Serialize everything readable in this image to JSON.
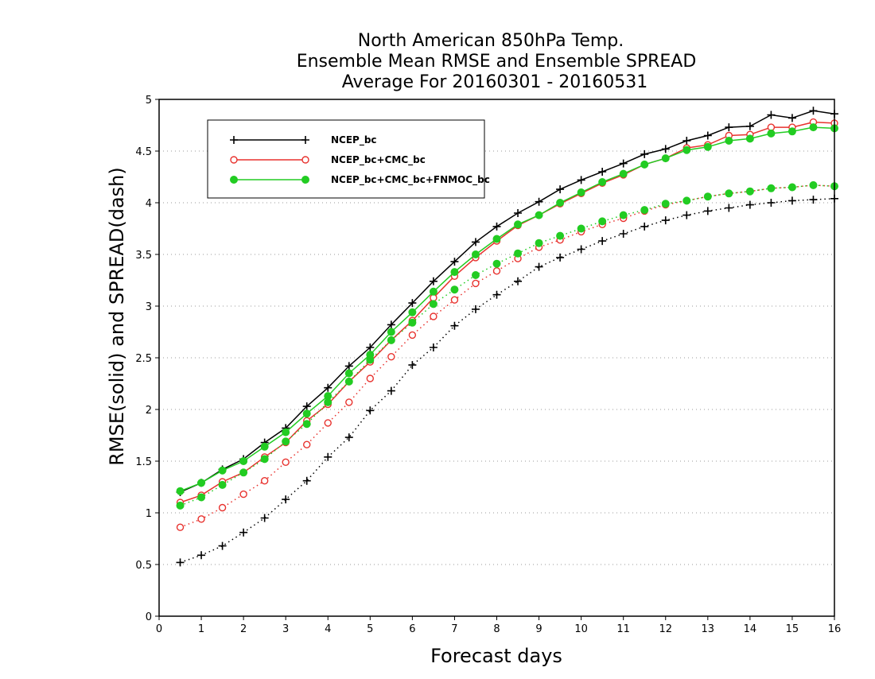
{
  "chart_data": {
    "type": "line",
    "title_lines": [
      "North American 850hPa Temp.",
      "Ensemble Mean RMSE and Ensemble SPREAD",
      "Average For 20160301 - 20160531"
    ],
    "xlabel": "Forecast days",
    "ylabel": "RMSE(solid) and SPREAD(dash)",
    "xlim": [
      0,
      16
    ],
    "ylim": [
      0,
      5
    ],
    "x_ticks": [
      "0",
      "1",
      "2",
      "3",
      "4",
      "5",
      "6",
      "7",
      "8",
      "9",
      "10",
      "11",
      "12",
      "13",
      "14",
      "15",
      "16"
    ],
    "y_ticks": [
      "0",
      "0.5",
      "1",
      "1.5",
      "2",
      "2.5",
      "3",
      "3.5",
      "4",
      "4.5",
      "5"
    ],
    "grid": "horizontal dotted",
    "legend_position": "top-left",
    "x": [
      0.5,
      1,
      1.5,
      2,
      2.5,
      3,
      3.5,
      4,
      4.5,
      5,
      5.5,
      6,
      6.5,
      7,
      7.5,
      8,
      8.5,
      9,
      9.5,
      10,
      10.5,
      11,
      11.5,
      12,
      12.5,
      13,
      13.5,
      14,
      14.5,
      15,
      15.5,
      16
    ],
    "series": [
      {
        "name": "NCEP_bc",
        "color": "#000000",
        "marker": "plus",
        "rmse": [
          1.2,
          1.29,
          1.42,
          1.52,
          1.68,
          1.82,
          2.03,
          2.21,
          2.42,
          2.6,
          2.82,
          3.03,
          3.24,
          3.43,
          3.62,
          3.77,
          3.9,
          4.01,
          4.13,
          4.22,
          4.3,
          4.38,
          4.47,
          4.52,
          4.6,
          4.65,
          4.73,
          4.74,
          4.85,
          4.82,
          4.89,
          4.86
        ],
        "spread": [
          0.52,
          0.59,
          0.68,
          0.81,
          0.95,
          1.13,
          1.31,
          1.54,
          1.73,
          1.99,
          2.18,
          2.43,
          2.6,
          2.81,
          2.97,
          3.11,
          3.24,
          3.38,
          3.47,
          3.55,
          3.63,
          3.7,
          3.77,
          3.83,
          3.88,
          3.92,
          3.95,
          3.98,
          4.0,
          4.02,
          4.03,
          4.04
        ]
      },
      {
        "name": "NCEP_bc+CMC_bc",
        "color": "#e8322e",
        "marker": "open-circle",
        "rmse": [
          1.1,
          1.17,
          1.3,
          1.39,
          1.54,
          1.68,
          1.89,
          2.05,
          2.27,
          2.46,
          2.67,
          2.86,
          3.08,
          3.29,
          3.47,
          3.63,
          3.78,
          3.88,
          3.99,
          4.09,
          4.19,
          4.27,
          4.37,
          4.43,
          4.53,
          4.56,
          4.65,
          4.66,
          4.73,
          4.73,
          4.78,
          4.77
        ],
        "spread": [
          0.86,
          0.94,
          1.05,
          1.18,
          1.31,
          1.49,
          1.66,
          1.87,
          2.07,
          2.3,
          2.51,
          2.72,
          2.9,
          3.06,
          3.22,
          3.34,
          3.46,
          3.57,
          3.64,
          3.72,
          3.79,
          3.85,
          3.92,
          3.98,
          4.02,
          4.06,
          4.09,
          4.11,
          4.14,
          4.15,
          4.17,
          4.16
        ]
      },
      {
        "name": "NCEP_bc+CMC_bc+FNMOC_bc",
        "color": "#22cc22",
        "marker": "filled-circle",
        "rmse": [
          1.21,
          1.29,
          1.41,
          1.5,
          1.64,
          1.78,
          1.96,
          2.13,
          2.35,
          2.53,
          2.75,
          2.94,
          3.14,
          3.33,
          3.5,
          3.65,
          3.79,
          3.88,
          4.0,
          4.1,
          4.2,
          4.28,
          4.37,
          4.43,
          4.51,
          4.54,
          4.6,
          4.62,
          4.67,
          4.69,
          4.73,
          4.72
        ],
        "spread": [
          1.07,
          1.15,
          1.27,
          1.39,
          1.52,
          1.69,
          1.86,
          2.07,
          2.27,
          2.48,
          2.67,
          2.84,
          3.02,
          3.16,
          3.3,
          3.41,
          3.51,
          3.61,
          3.68,
          3.75,
          3.82,
          3.88,
          3.93,
          3.99,
          4.02,
          4.06,
          4.09,
          4.11,
          4.14,
          4.15,
          4.17,
          4.16
        ]
      }
    ]
  }
}
